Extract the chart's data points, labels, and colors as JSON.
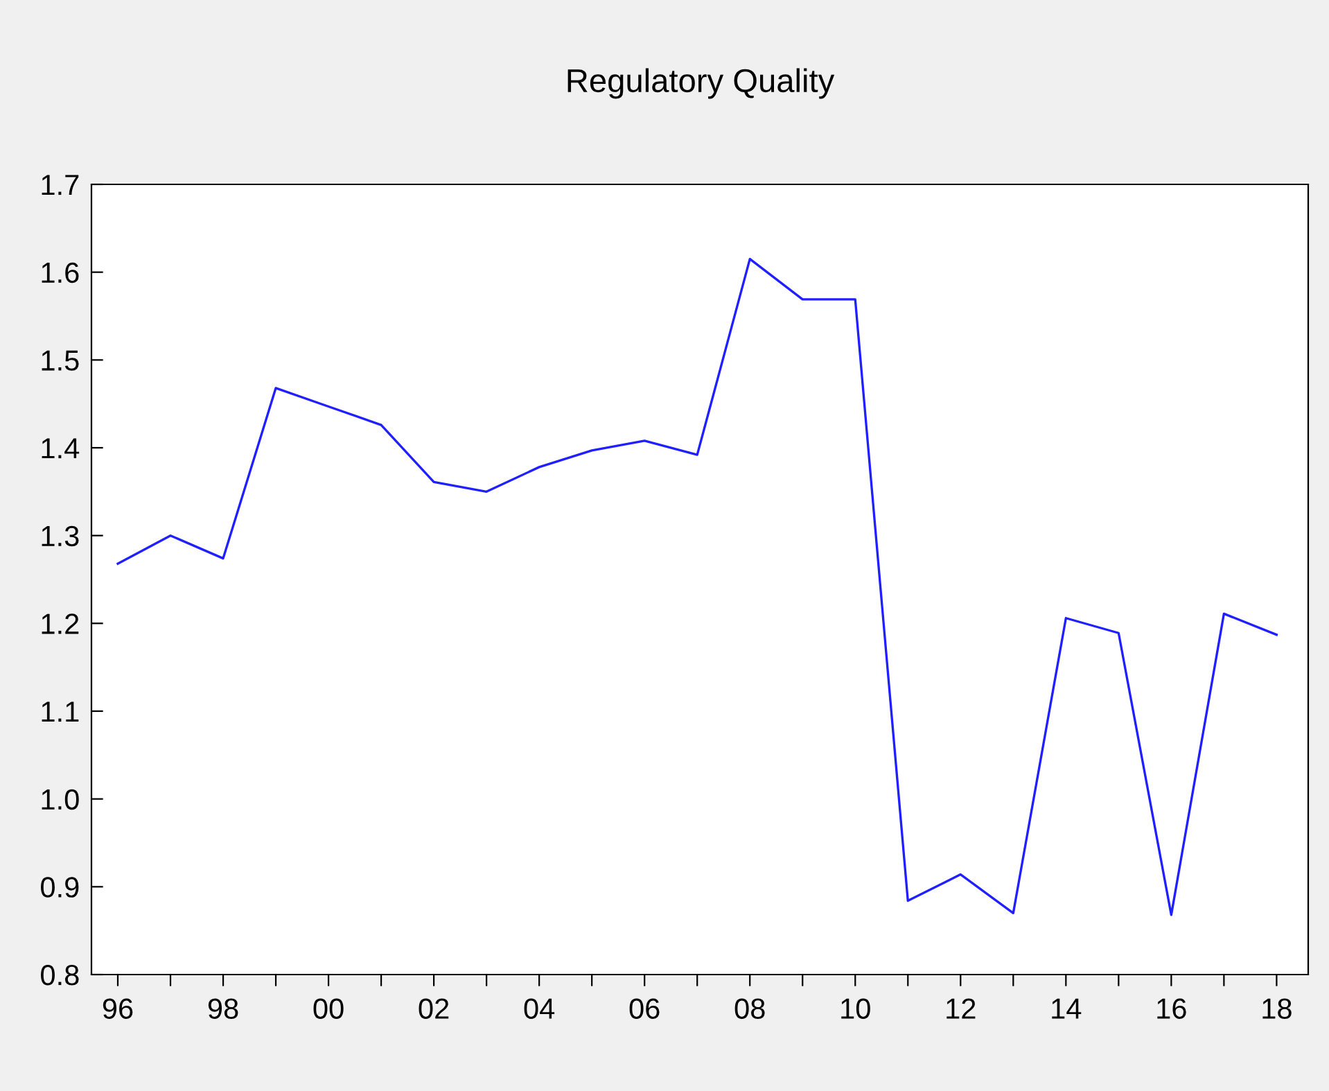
{
  "chart_data": {
    "type": "line",
    "title": "Regulatory Quality",
    "x": [
      1996,
      1997,
      1998,
      1999,
      2000,
      2001,
      2002,
      2003,
      2004,
      2005,
      2006,
      2007,
      2008,
      2009,
      2010,
      2011,
      2012,
      2013,
      2014,
      2015,
      2016,
      2017,
      2018
    ],
    "series": [
      {
        "color": "#1f1fff",
        "values": [
          1.268,
          1.3,
          1.274,
          1.468,
          1.447,
          1.426,
          1.361,
          1.35,
          1.378,
          1.397,
          1.408,
          1.392,
          1.615,
          1.569,
          1.569,
          0.884,
          0.914,
          0.87,
          1.206,
          1.189,
          0.868,
          1.211,
          1.187
        ]
      }
    ],
    "xlim": [
      1995.5,
      2018.6
    ],
    "xticks": [
      {
        "value": 1996,
        "label": "96"
      },
      {
        "value": 1997,
        "label": null
      },
      {
        "value": 1998,
        "label": "98"
      },
      {
        "value": 1999,
        "label": null
      },
      {
        "value": 2000,
        "label": "00"
      },
      {
        "value": 2001,
        "label": null
      },
      {
        "value": 2002,
        "label": "02"
      },
      {
        "value": 2003,
        "label": null
      },
      {
        "value": 2004,
        "label": "04"
      },
      {
        "value": 2005,
        "label": null
      },
      {
        "value": 2006,
        "label": "06"
      },
      {
        "value": 2007,
        "label": null
      },
      {
        "value": 2008,
        "label": "08"
      },
      {
        "value": 2009,
        "label": null
      },
      {
        "value": 2010,
        "label": "10"
      },
      {
        "value": 2011,
        "label": null
      },
      {
        "value": 2012,
        "label": "12"
      },
      {
        "value": 2013,
        "label": null
      },
      {
        "value": 2014,
        "label": "14"
      },
      {
        "value": 2015,
        "label": null
      },
      {
        "value": 2016,
        "label": "16"
      },
      {
        "value": 2017,
        "label": null
      },
      {
        "value": 2018,
        "label": "18"
      }
    ],
    "ylim": [
      0.8,
      1.7
    ],
    "yticks": [
      {
        "value": 0.8,
        "label": "0.8"
      },
      {
        "value": 0.9,
        "label": "0.9"
      },
      {
        "value": 1.0,
        "label": "1.0"
      },
      {
        "value": 1.1,
        "label": "1.1"
      },
      {
        "value": 1.2,
        "label": "1.2"
      },
      {
        "value": 1.3,
        "label": "1.3"
      },
      {
        "value": 1.4,
        "label": "1.4"
      },
      {
        "value": 1.5,
        "label": "1.5"
      },
      {
        "value": 1.6,
        "label": "1.6"
      },
      {
        "value": 1.7,
        "label": "1.7"
      }
    ],
    "grid": false,
    "legend": false,
    "marker": "none",
    "line_style": "solid"
  }
}
